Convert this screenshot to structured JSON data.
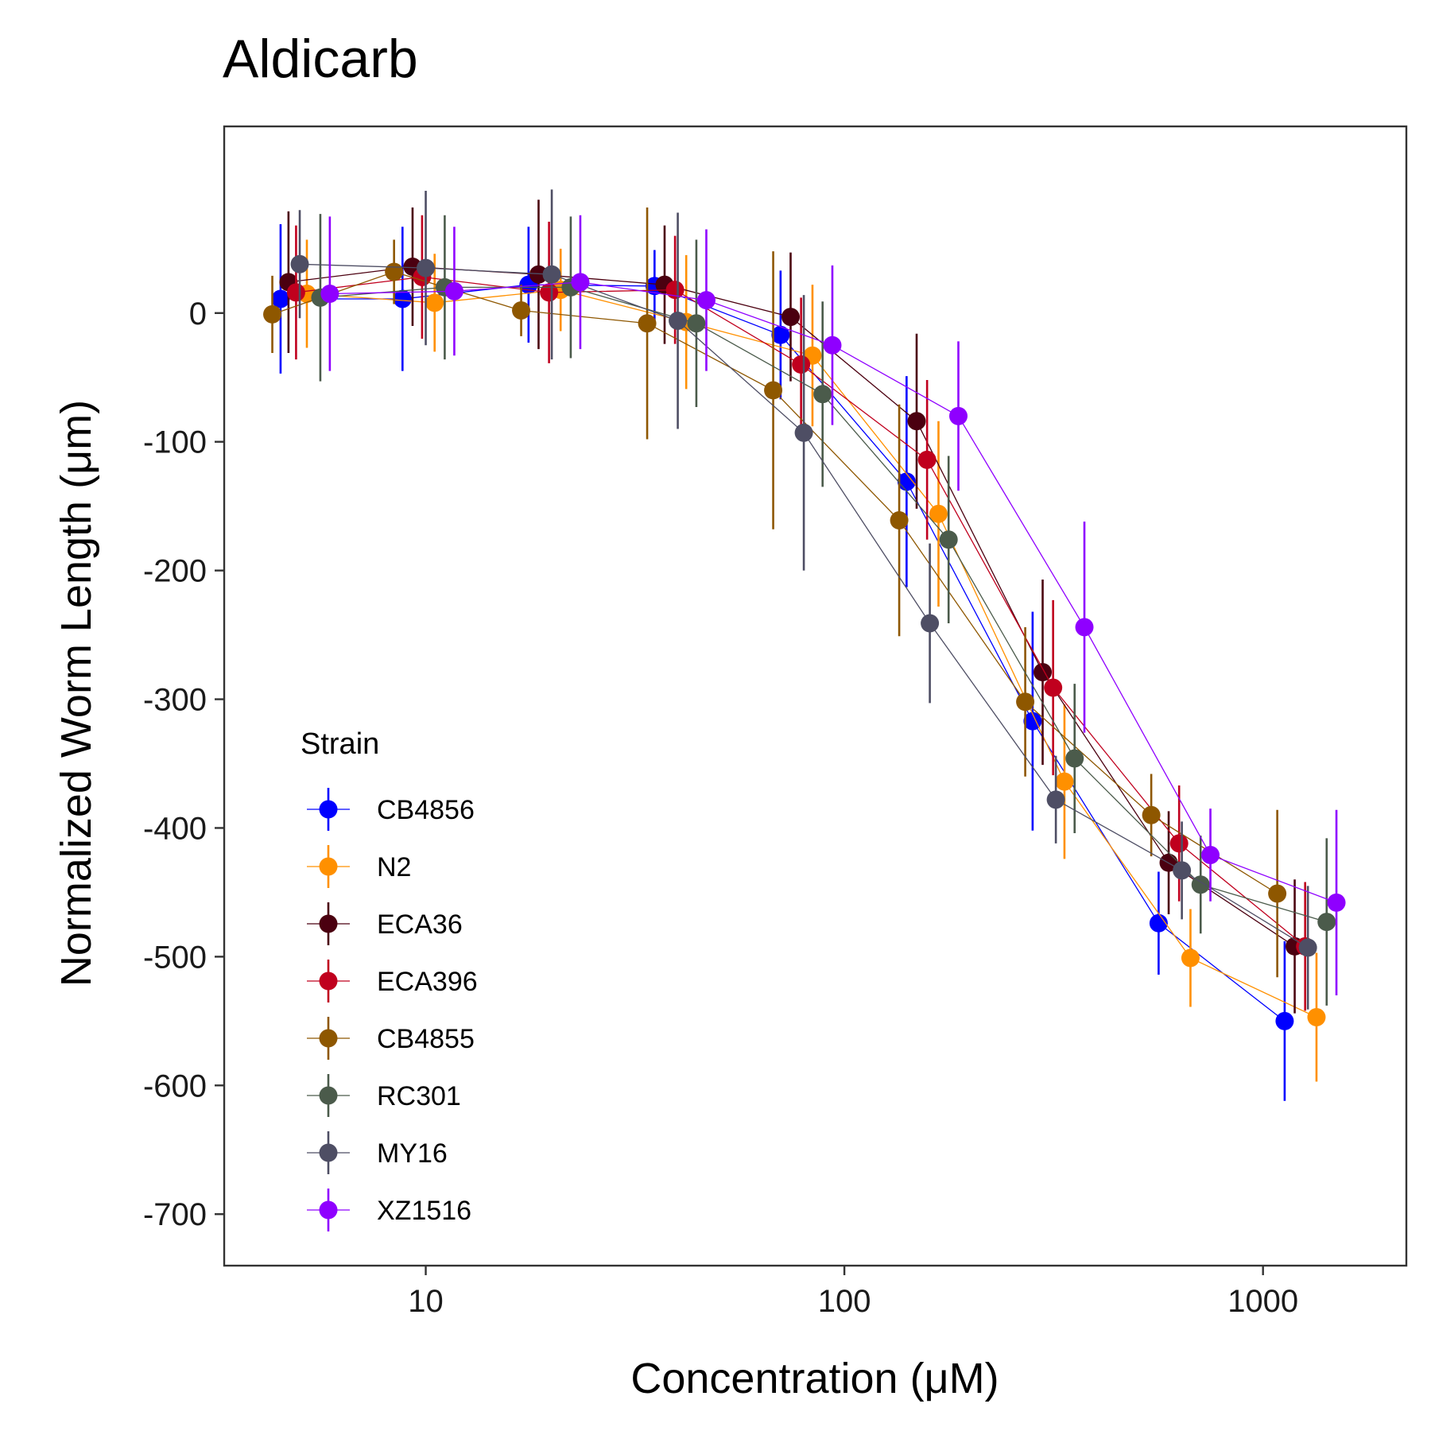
{
  "chart_data": {
    "type": "scatter",
    "title": "Aldicarb",
    "xlabel": "Concentration (μM)",
    "ylabel": "Normalized Worm Length (μm)",
    "x_scale": "log10",
    "xlim": [
      3.3,
      2200
    ],
    "ylim": [
      -740,
      145
    ],
    "x_ticks": [
      10,
      100,
      1000
    ],
    "x_tick_labels": [
      "10",
      "100",
      "1000"
    ],
    "y_ticks": [
      0,
      -100,
      -200,
      -300,
      -400,
      -500,
      -600,
      -700
    ],
    "y_tick_labels": [
      "0",
      "-100",
      "-200",
      "-300",
      "-400",
      "-500",
      "-600",
      "-700"
    ],
    "grid": false,
    "legend": {
      "title": "Strain",
      "position": "bottom-left (inside)"
    },
    "series": [
      {
        "name": "CB4856",
        "color": "#0000FF",
        "x": [
          4.5,
          8.8,
          17.6,
          35.2,
          70.4,
          140.8,
          281.6,
          563.2,
          1126.4
        ],
        "y": [
          11,
          11,
          22,
          21,
          -17,
          -131,
          -317,
          -474,
          -550
        ],
        "err": [
          58,
          56,
          45,
          28,
          50,
          82,
          85,
          40,
          62
        ]
      },
      {
        "name": "N2",
        "color": "#FF9000",
        "x": [
          5.2,
          10.5,
          21.0,
          41.9,
          83.9,
          167.8,
          335.5,
          671.0,
          1342.0
        ],
        "y": [
          15,
          8,
          18,
          -7,
          -33,
          -156,
          -364,
          -501,
          -547
        ],
        "err": [
          42,
          38,
          32,
          52,
          55,
          72,
          60,
          38,
          50
        ]
      },
      {
        "name": "ECA36",
        "color": "#4B0010",
        "x": [
          4.7,
          9.3,
          18.6,
          37.2,
          74.4,
          148.8,
          297.6,
          595.2,
          1190.4
        ],
        "y": [
          24,
          36,
          30,
          22,
          -3,
          -84,
          -279,
          -427,
          -492
        ],
        "err": [
          55,
          46,
          58,
          46,
          50,
          68,
          72,
          40,
          52
        ]
      },
      {
        "name": "ECA396",
        "color": "#C0001E",
        "x": [
          4.9,
          9.8,
          19.7,
          39.4,
          78.8,
          157.6,
          315.2,
          630.4,
          1260.8
        ],
        "y": [
          16,
          28,
          16,
          18,
          -40,
          -114,
          -291,
          -412,
          -492
        ],
        "err": [
          52,
          48,
          55,
          42,
          52,
          62,
          68,
          45,
          50
        ]
      },
      {
        "name": "CB4855",
        "color": "#8E5700",
        "x": [
          4.3,
          8.4,
          16.9,
          33.8,
          67.6,
          135.2,
          270.4,
          540.8,
          1081.6
        ],
        "y": [
          -1,
          32,
          2,
          -8,
          -60,
          -161,
          -302,
          -390,
          -451
        ],
        "err": [
          30,
          25,
          20,
          90,
          108,
          90,
          58,
          32,
          65
        ]
      },
      {
        "name": "RC301",
        "color": "#4B5B4B",
        "x": [
          5.6,
          11.1,
          22.2,
          44.3,
          88.7,
          177.4,
          354.8,
          709.6,
          1419.2
        ],
        "y": [
          12,
          20,
          20,
          -8,
          -63,
          -176,
          -346,
          -444,
          -473
        ],
        "err": [
          65,
          56,
          55,
          65,
          72,
          65,
          58,
          38,
          65
        ]
      },
      {
        "name": "MY16",
        "color": "#4E4E64",
        "x": [
          5.0,
          10.0,
          20.0,
          40.0,
          80.0,
          160.0,
          320.0,
          640.0,
          1280.0
        ],
        "y": [
          38,
          35,
          30,
          -6,
          -93,
          -241,
          -378,
          -433,
          -493
        ],
        "err": [
          42,
          60,
          66,
          84,
          107,
          62,
          34,
          38,
          48
        ]
      },
      {
        "name": "XZ1516",
        "color": "#8F00FF",
        "x": [
          5.9,
          11.7,
          23.4,
          46.8,
          93.6,
          187.2,
          374.4,
          748.8,
          1497.6
        ],
        "y": [
          15,
          17,
          24,
          10,
          -25,
          -80,
          -244,
          -421,
          -458
        ],
        "err": [
          60,
          50,
          52,
          55,
          62,
          58,
          82,
          36,
          72
        ]
      }
    ]
  }
}
